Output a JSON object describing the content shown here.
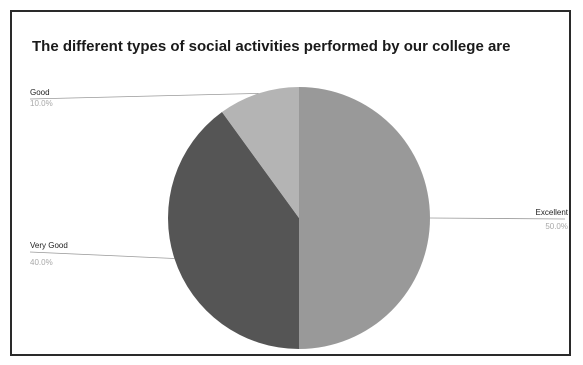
{
  "chart_data": {
    "type": "pie",
    "title": "The different types of social activities performed by our college are",
    "slices": [
      {
        "label": "Excellent",
        "percent_text": "50.0%",
        "value": 50.0,
        "color": "#999999"
      },
      {
        "label": "Very Good",
        "percent_text": "40.0%",
        "value": 40.0,
        "color": "#555555"
      },
      {
        "label": "Good",
        "percent_text": "10.0%",
        "value": 10.0,
        "color": "#b4b4b4"
      }
    ]
  }
}
